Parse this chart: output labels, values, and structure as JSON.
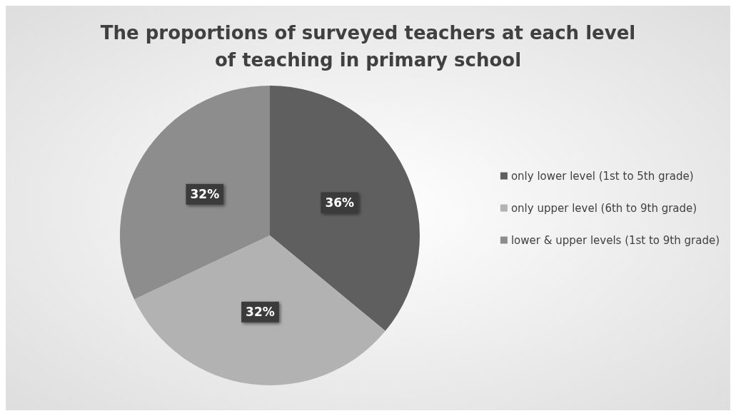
{
  "chart_data": {
    "type": "pie",
    "title": "The proportions of surveyed teachers at each level\nof teaching in primary school",
    "categories": [
      "only lower level (1st to 5th grade)",
      "only upper level (6th to 9th grade)",
      "lower & upper levels (1st to 9th grade)"
    ],
    "values": [
      36,
      32,
      32
    ],
    "colors": [
      "#5f5f5f",
      "#b2b2b2",
      "#8d8d8d"
    ],
    "value_labels": [
      "36%",
      "32%",
      "32%"
    ],
    "legend": "right"
  }
}
